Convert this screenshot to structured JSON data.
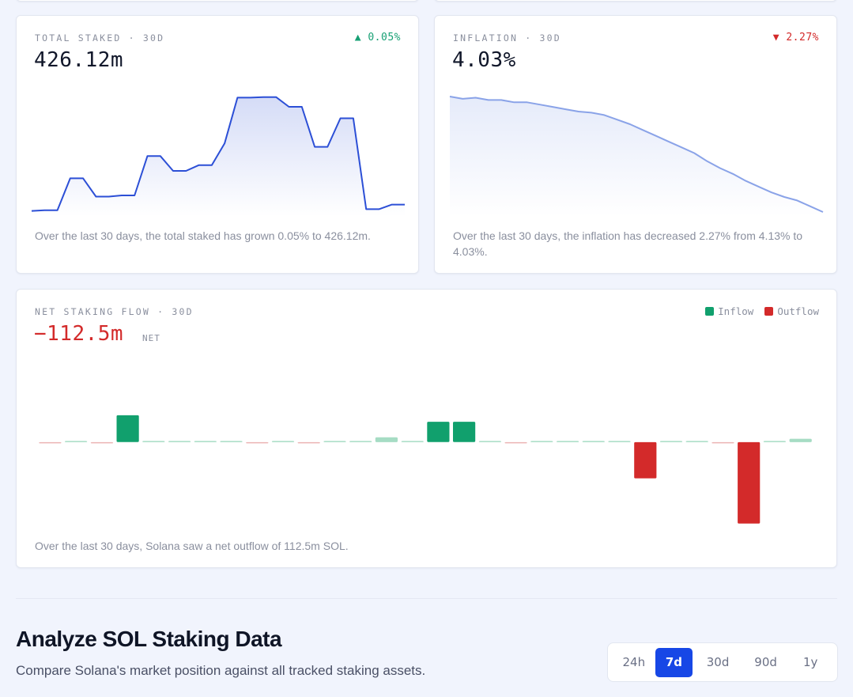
{
  "colors": {
    "up": "#17a074",
    "down": "#d32a2a",
    "line_dark": "#2c4fd6",
    "line_light": "#8aa3e8",
    "inflow": "#11a06d",
    "inflow_light": "#a6dcc4",
    "outflow": "#d32a2a",
    "outflow_light": "#ebb3b3",
    "active_range": "#1747e6"
  },
  "total_staked": {
    "label": "TOTAL STAKED · 30D",
    "change": "▲ 0.05%",
    "value": "426.12m",
    "description": "Over the last 30 days, the total staked has grown 0.05% to 426.12m."
  },
  "inflation": {
    "label": "INFLATION · 30D",
    "change": "▼ 2.27%",
    "value": "4.03%",
    "description": "Over the last 30 days, the inflation has decreased 2.27% from 4.13% to 4.03%."
  },
  "net_flow": {
    "label": "NET STAKING FLOW · 30D",
    "value": "−112.5m",
    "suffix": "NET",
    "legend": {
      "inflow": "Inflow",
      "outflow": "Outflow"
    },
    "description": "Over the last 30 days, Solana saw a net outflow of 112.5m SOL."
  },
  "section": {
    "title": "Analyze SOL Staking Data",
    "subtitle": "Compare Solana's market position against all tracked staking assets."
  },
  "ranges": {
    "options": [
      "24h",
      "7d",
      "30d",
      "90d",
      "1y"
    ],
    "selected": "7d"
  },
  "chart_data": [
    {
      "type": "area",
      "name": "total-staked-30d",
      "title": "",
      "xlabel": "",
      "ylabel": "",
      "x": [
        1,
        2,
        3,
        4,
        5,
        6,
        7,
        8,
        9,
        10,
        11,
        12,
        13,
        14,
        15,
        16,
        17,
        18,
        19,
        20,
        21,
        22,
        23,
        24,
        25,
        26,
        27,
        28,
        29,
        30
      ],
      "values": [
        1.0,
        1.5,
        1.5,
        29.5,
        29.5,
        13.5,
        13.5,
        14.5,
        14.5,
        49,
        49,
        36,
        36,
        41,
        41,
        60,
        100,
        100,
        100.5,
        100.5,
        92,
        92,
        57,
        57,
        82,
        82,
        2.5,
        2.5,
        6.5,
        6.5
      ],
      "ylim": [
        0,
        101
      ],
      "grid": false
    },
    {
      "type": "area",
      "name": "inflation-30d",
      "title": "",
      "xlabel": "",
      "ylabel": "",
      "x": [
        1,
        2,
        3,
        4,
        5,
        6,
        7,
        8,
        9,
        10,
        11,
        12,
        13,
        14,
        15,
        16,
        17,
        18,
        19,
        20,
        21,
        22,
        23,
        24,
        25,
        26,
        27,
        28,
        29,
        30
      ],
      "values": [
        4.13,
        4.128,
        4.129,
        4.127,
        4.127,
        4.125,
        4.125,
        4.123,
        4.121,
        4.119,
        4.117,
        4.116,
        4.114,
        4.11,
        4.106,
        4.101,
        4.096,
        4.091,
        4.086,
        4.081,
        4.074,
        4.068,
        4.063,
        4.057,
        4.052,
        4.047,
        4.043,
        4.04,
        4.035,
        4.03
      ],
      "ylim": [
        4.03,
        4.13
      ],
      "grid": false
    },
    {
      "type": "bar",
      "name": "net-staking-flow-30d",
      "title": "",
      "xlabel": "",
      "ylabel": "",
      "x": [
        1,
        2,
        3,
        4,
        5,
        6,
        7,
        8,
        9,
        10,
        11,
        12,
        13,
        14,
        15,
        16,
        17,
        18,
        19,
        20,
        21,
        22,
        23,
        24,
        25,
        26,
        27,
        28,
        29,
        30
      ],
      "values": [
        -0.4,
        0.4,
        -0.4,
        9.5,
        0.4,
        0.4,
        0.4,
        0.4,
        -0.4,
        0.4,
        -0.4,
        0.4,
        0.4,
        1.7,
        0.4,
        7.2,
        7.2,
        0.4,
        -0.4,
        0.4,
        0.4,
        0.4,
        0.4,
        -12.8,
        0.4,
        0.4,
        -0.4,
        -28.8,
        0.4,
        1.2
      ],
      "strong": [
        false,
        false,
        false,
        true,
        false,
        false,
        false,
        false,
        false,
        false,
        false,
        false,
        false,
        false,
        false,
        true,
        true,
        false,
        false,
        false,
        false,
        false,
        false,
        true,
        false,
        false,
        false,
        true,
        false,
        false
      ],
      "series_names": [
        "Inflow",
        "Outflow"
      ],
      "ylim": [
        -30,
        12
      ],
      "legend": "top-right",
      "grid": false
    }
  ]
}
